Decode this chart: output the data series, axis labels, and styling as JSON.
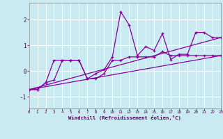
{
  "xlabel": "Windchill (Refroidissement éolien,°C)",
  "background_color": "#c8eaf0",
  "line_color": "#880099",
  "xlim": [
    0,
    23
  ],
  "ylim": [
    -1.45,
    2.65
  ],
  "yticks": [
    -1,
    0,
    1,
    2
  ],
  "xticks": [
    0,
    1,
    2,
    3,
    4,
    5,
    6,
    7,
    8,
    9,
    10,
    11,
    12,
    13,
    14,
    15,
    16,
    17,
    18,
    19,
    20,
    21,
    22,
    23
  ],
  "series1_x": [
    0,
    1,
    2,
    3,
    4,
    5,
    6,
    7,
    8,
    9,
    10,
    11,
    12,
    13,
    14,
    15,
    16,
    17,
    18,
    19,
    20,
    21,
    22,
    23
  ],
  "series1_y": [
    -0.72,
    -0.72,
    -0.45,
    -0.35,
    0.42,
    0.42,
    0.42,
    -0.3,
    -0.1,
    0.05,
    0.55,
    2.3,
    1.8,
    0.6,
    0.95,
    0.8,
    1.45,
    0.45,
    0.65,
    0.65,
    1.5,
    1.5,
    1.3,
    1.3
  ],
  "series2_x": [
    0,
    1,
    2,
    3,
    4,
    5,
    6,
    7,
    8,
    9,
    10,
    11,
    12,
    13,
    14,
    15,
    16,
    17,
    18,
    19,
    20,
    21,
    22,
    23
  ],
  "series2_y": [
    -0.72,
    -0.72,
    -0.45,
    0.42,
    0.42,
    0.42,
    0.42,
    -0.3,
    -0.3,
    -0.1,
    0.42,
    0.42,
    0.55,
    0.55,
    0.55,
    0.55,
    0.75,
    0.6,
    0.6,
    0.6,
    0.6,
    0.6,
    0.6,
    0.6
  ],
  "trend1_x": [
    0,
    23
  ],
  "trend1_y": [
    -0.72,
    0.6
  ],
  "trend2_x": [
    0,
    23
  ],
  "trend2_y": [
    -0.72,
    1.3
  ]
}
